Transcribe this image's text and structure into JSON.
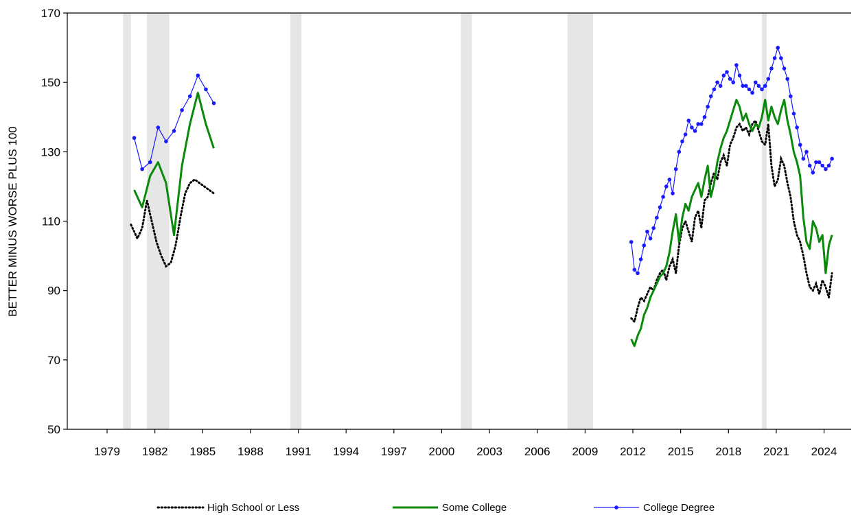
{
  "chart_data": {
    "type": "line",
    "title": "",
    "xlabel": "",
    "ylabel": "BETTER MINUS WORSE PLUS 100",
    "xlim": [
      1976.5,
      2025.7
    ],
    "ylim": [
      50,
      170
    ],
    "x_ticks": [
      "1979",
      "1982",
      "1985",
      "1988",
      "1991",
      "1994",
      "1997",
      "2000",
      "2003",
      "2006",
      "2009",
      "2012",
      "2015",
      "2018",
      "2021",
      "2024"
    ],
    "y_ticks": [
      "50",
      "70",
      "90",
      "110",
      "130",
      "150",
      "170"
    ],
    "grid": false,
    "legend_position": "bottom",
    "recessions": [
      [
        1980.0,
        1980.5
      ],
      [
        1981.5,
        1982.9
      ],
      [
        1990.5,
        1991.2
      ],
      [
        2001.2,
        2001.9
      ],
      [
        2007.9,
        2009.5
      ],
      [
        2020.1,
        2020.4
      ]
    ],
    "series": [
      {
        "name": "High School or Less",
        "color": "#000000",
        "style": "dotted",
        "x": [
          1980.5,
          1980.9,
          1981.2,
          1981.5,
          1981.8,
          1982.1,
          1982.4,
          1982.7,
          1983.0,
          1983.3,
          1983.6,
          1983.9,
          1984.2,
          1984.5,
          1984.8,
          1985.1,
          1985.4,
          1985.7,
          null,
          2011.9,
          2012.1,
          2012.3,
          2012.5,
          2012.7,
          2012.9,
          2013.1,
          2013.3,
          2013.5,
          2013.7,
          2013.9,
          2014.1,
          2014.3,
          2014.5,
          2014.7,
          2014.9,
          2015.1,
          2015.3,
          2015.5,
          2015.7,
          2015.9,
          2016.1,
          2016.3,
          2016.5,
          2016.7,
          2016.9,
          2017.1,
          2017.3,
          2017.5,
          2017.7,
          2017.9,
          2018.1,
          2018.3,
          2018.5,
          2018.7,
          2018.9,
          2019.1,
          2019.3,
          2019.5,
          2019.7,
          2019.9,
          2020.1,
          2020.3,
          2020.5,
          2020.7,
          2020.9,
          2021.1,
          2021.3,
          2021.5,
          2021.7,
          2021.9,
          2022.1,
          2022.3,
          2022.5,
          2022.7,
          2022.9,
          2023.1,
          2023.3,
          2023.5,
          2023.7,
          2023.9,
          2024.1,
          2024.3,
          2024.5
        ],
        "y": [
          109,
          105,
          108,
          116,
          110,
          104,
          100,
          97,
          98,
          103,
          111,
          118,
          121,
          122,
          121,
          120,
          119,
          118,
          null,
          82,
          81,
          85,
          88,
          87,
          89,
          91,
          90,
          93,
          95,
          96,
          93,
          97,
          99,
          95,
          103,
          108,
          110,
          107,
          104,
          111,
          113,
          108,
          116,
          117,
          121,
          124,
          122,
          127,
          129,
          126,
          132,
          134,
          137,
          138,
          136,
          137,
          135,
          138,
          139,
          136,
          133,
          132,
          138,
          126,
          120,
          122,
          128,
          126,
          121,
          117,
          110,
          106,
          104,
          100,
          95,
          91,
          90,
          92,
          89,
          93,
          91,
          88,
          95
        ]
      },
      {
        "name": "Some College",
        "color": "#0a8a0a",
        "style": "solid-thick",
        "x": [
          1980.7,
          1981.2,
          1981.7,
          1982.2,
          1982.7,
          1983.2,
          1983.7,
          1984.2,
          1984.7,
          1985.2,
          1985.7,
          null,
          2011.9,
          2012.1,
          2012.3,
          2012.5,
          2012.7,
          2012.9,
          2013.1,
          2013.3,
          2013.5,
          2013.7,
          2013.9,
          2014.1,
          2014.3,
          2014.5,
          2014.7,
          2014.9,
          2015.1,
          2015.3,
          2015.5,
          2015.7,
          2015.9,
          2016.1,
          2016.3,
          2016.5,
          2016.7,
          2016.9,
          2017.1,
          2017.3,
          2017.5,
          2017.7,
          2017.9,
          2018.1,
          2018.3,
          2018.5,
          2018.7,
          2018.9,
          2019.1,
          2019.3,
          2019.5,
          2019.7,
          2019.9,
          2020.1,
          2020.3,
          2020.5,
          2020.7,
          2020.9,
          2021.1,
          2021.3,
          2021.5,
          2021.7,
          2021.9,
          2022.1,
          2022.3,
          2022.5,
          2022.7,
          2022.9,
          2023.1,
          2023.3,
          2023.5,
          2023.7,
          2023.9,
          2024.1,
          2024.3,
          2024.5
        ],
        "y": [
          119,
          114,
          123,
          127,
          121,
          106,
          126,
          138,
          147,
          138,
          131,
          null,
          76,
          74,
          77,
          79,
          83,
          85,
          88,
          90,
          92,
          94,
          95,
          97,
          101,
          107,
          112,
          104,
          111,
          115,
          113,
          117,
          119,
          121,
          117,
          122,
          126,
          117,
          121,
          127,
          131,
          134,
          136,
          139,
          142,
          145,
          143,
          139,
          141,
          138,
          136,
          138,
          137,
          140,
          145,
          139,
          143,
          140,
          138,
          142,
          145,
          139,
          135,
          130,
          127,
          123,
          111,
          104,
          102,
          110,
          108,
          104,
          106,
          95,
          103,
          106
        ]
      },
      {
        "name": "College Degree",
        "color": "#1a1aff",
        "style": "solid-markers",
        "x": [
          1980.7,
          1981.2,
          1981.7,
          1982.2,
          1982.7,
          1983.2,
          1983.7,
          1984.2,
          1984.7,
          1985.2,
          1985.7,
          null,
          2011.9,
          2012.1,
          2012.3,
          2012.5,
          2012.7,
          2012.9,
          2013.1,
          2013.3,
          2013.5,
          2013.7,
          2013.9,
          2014.1,
          2014.3,
          2014.5,
          2014.7,
          2014.9,
          2015.1,
          2015.3,
          2015.5,
          2015.7,
          2015.9,
          2016.1,
          2016.3,
          2016.5,
          2016.7,
          2016.9,
          2017.1,
          2017.3,
          2017.5,
          2017.7,
          2017.9,
          2018.1,
          2018.3,
          2018.5,
          2018.7,
          2018.9,
          2019.1,
          2019.3,
          2019.5,
          2019.7,
          2019.9,
          2020.1,
          2020.3,
          2020.5,
          2020.7,
          2020.9,
          2021.1,
          2021.3,
          2021.5,
          2021.7,
          2021.9,
          2022.1,
          2022.3,
          2022.5,
          2022.7,
          2022.9,
          2023.1,
          2023.3,
          2023.5,
          2023.7,
          2023.9,
          2024.1,
          2024.3,
          2024.5
        ],
        "y": [
          134,
          125,
          127,
          137,
          133,
          136,
          142,
          146,
          152,
          148,
          144,
          null,
          104,
          96,
          95,
          99,
          103,
          107,
          105,
          108,
          111,
          114,
          117,
          120,
          122,
          118,
          125,
          130,
          133,
          135,
          139,
          137,
          136,
          138,
          138,
          140,
          143,
          146,
          148,
          150,
          149,
          152,
          153,
          151,
          150,
          155,
          152,
          149,
          149,
          148,
          147,
          150,
          149,
          148,
          149,
          151,
          154,
          157,
          160,
          157,
          154,
          151,
          146,
          141,
          137,
          132,
          128,
          130,
          126,
          124,
          127,
          127,
          126,
          125,
          126,
          128
        ]
      }
    ]
  }
}
